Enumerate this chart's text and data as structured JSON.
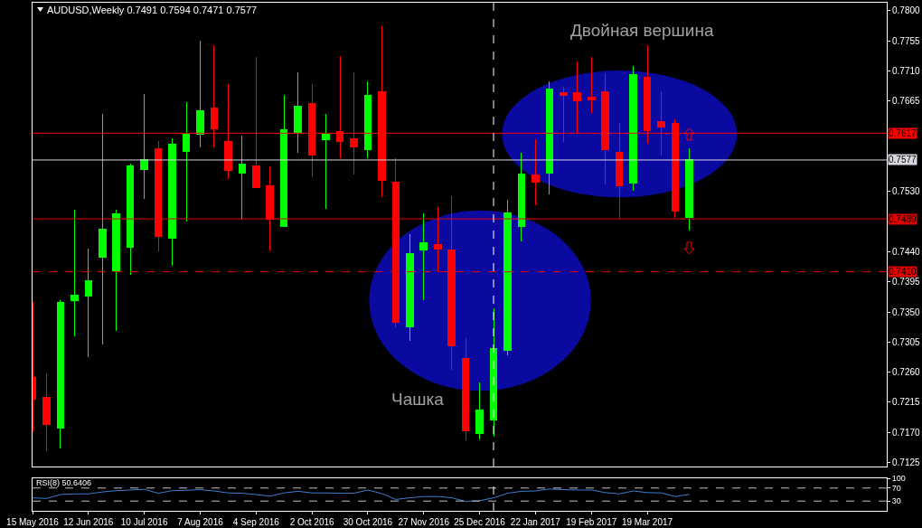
{
  "chart_data": [
    {
      "type": "candlestick",
      "title": "AUDUSD,Weekly 0.7491 0.7594 0.7471 0.7577",
      "x": [
        "2016-05-15",
        "2016-05-22",
        "2016-05-29",
        "2016-06-05",
        "2016-06-12",
        "2016-06-19",
        "2016-06-26",
        "2016-07-03",
        "2016-07-10",
        "2016-07-17",
        "2016-07-24",
        "2016-07-31",
        "2016-08-07",
        "2016-08-14",
        "2016-08-21",
        "2016-08-28",
        "2016-09-04",
        "2016-09-11",
        "2016-09-18",
        "2016-09-25",
        "2016-10-02",
        "2016-10-09",
        "2016-10-16",
        "2016-10-23",
        "2016-10-30",
        "2016-11-06",
        "2016-11-13",
        "2016-11-20",
        "2016-11-27",
        "2016-12-04",
        "2016-12-11",
        "2016-12-18",
        "2016-12-25",
        "2017-01-01",
        "2017-01-08",
        "2017-01-15",
        "2017-01-22",
        "2017-01-29",
        "2017-02-05",
        "2017-02-12",
        "2017-02-19",
        "2017-02-26",
        "2017-03-05",
        "2017-03-12",
        "2017-03-19",
        "2017-03-26",
        "2017-04-02",
        "2017-04-09"
      ],
      "ohlc": [
        [
          0.7252,
          0.7365,
          0.7171,
          0.722
        ],
        [
          0.7222,
          0.7258,
          0.7142,
          0.7182
        ],
        [
          0.7177,
          0.7367,
          0.7146,
          0.7364
        ],
        [
          0.7367,
          0.7503,
          0.7313,
          0.7375
        ],
        [
          0.7374,
          0.7445,
          0.7283,
          0.7396
        ],
        [
          0.7432,
          0.7646,
          0.7302,
          0.7473
        ],
        [
          0.7412,
          0.7502,
          0.7322,
          0.7497
        ],
        [
          0.7447,
          0.7572,
          0.7406,
          0.7568
        ],
        [
          0.7563,
          0.7675,
          0.7519,
          0.7577
        ],
        [
          0.7594,
          0.7605,
          0.744,
          0.7463
        ],
        [
          0.746,
          0.7609,
          0.7419,
          0.7601
        ],
        [
          0.759,
          0.7663,
          0.7485,
          0.7616
        ],
        [
          0.7615,
          0.7755,
          0.7596,
          0.765
        ],
        [
          0.7655,
          0.7749,
          0.7596,
          0.7624
        ],
        [
          0.7604,
          0.7691,
          0.7548,
          0.7561
        ],
        [
          0.7557,
          0.7614,
          0.7488,
          0.7571
        ],
        [
          0.7568,
          0.7731,
          0.7535,
          0.7536
        ],
        [
          0.7539,
          0.7567,
          0.744,
          0.7489
        ],
        [
          0.7478,
          0.7674,
          0.7477,
          0.7622
        ],
        [
          0.7618,
          0.7708,
          0.7588,
          0.7658
        ],
        [
          0.7661,
          0.769,
          0.7551,
          0.7584
        ],
        [
          0.7607,
          0.7646,
          0.7504,
          0.7616
        ],
        [
          0.762,
          0.7732,
          0.7579,
          0.7604
        ],
        [
          0.7609,
          0.7708,
          0.7555,
          0.7596
        ],
        [
          0.7592,
          0.7695,
          0.758,
          0.7673
        ],
        [
          0.7679,
          0.7777,
          0.7522,
          0.7547
        ],
        [
          0.7544,
          0.758,
          0.7327,
          0.7334
        ],
        [
          0.7328,
          0.7466,
          0.7307,
          0.7437
        ],
        [
          0.7442,
          0.7497,
          0.7367,
          0.7453
        ],
        [
          0.745,
          0.7507,
          0.741,
          0.7444
        ],
        [
          0.7442,
          0.7523,
          0.7264,
          0.7299
        ],
        [
          0.7281,
          0.7311,
          0.7158,
          0.7172
        ],
        [
          0.7168,
          0.7245,
          0.716,
          0.7204
        ],
        [
          0.7188,
          0.7355,
          0.7163,
          0.7295
        ],
        [
          0.7293,
          0.7518,
          0.7285,
          0.7498
        ],
        [
          0.7478,
          0.7588,
          0.7456,
          0.7556
        ],
        [
          0.7555,
          0.7608,
          0.751,
          0.7544
        ],
        [
          0.7557,
          0.7695,
          0.7526,
          0.7683
        ],
        [
          0.7678,
          0.7687,
          0.7604,
          0.7674
        ],
        [
          0.7678,
          0.7724,
          0.7618,
          0.7666
        ],
        [
          0.7671,
          0.7731,
          0.7647,
          0.7667
        ],
        [
          0.7679,
          0.7707,
          0.754,
          0.7593
        ],
        [
          0.7588,
          0.7632,
          0.7489,
          0.7539
        ],
        [
          0.7543,
          0.7718,
          0.7531,
          0.7704
        ],
        [
          0.77,
          0.7749,
          0.7601,
          0.7621
        ],
        [
          0.7635,
          0.7679,
          0.7584,
          0.7626
        ],
        [
          0.7632,
          0.7638,
          0.7491,
          0.75
        ],
        [
          0.7491,
          0.7594,
          0.7471,
          0.7577
        ]
      ],
      "colors": [
        "#ff0000",
        "#ff0000",
        "#00ff00",
        "#00ff00",
        "#00ff00",
        "#00ff00",
        "#00ff00",
        "#00ff00",
        "#00ff00",
        "#ff0000",
        "#00ff00",
        "#00ff00",
        "#00ff00",
        "#ff0000",
        "#ff0000",
        "#00ff00",
        "#ff0000",
        "#ff0000",
        "#00ff00",
        "#00ff00",
        "#ff0000",
        "#00ff00",
        "#ff0000",
        "#ff0000",
        "#00ff00",
        "#ff0000",
        "#ff0000",
        "#00ff00",
        "#00ff00",
        "#ff0000",
        "#ff0000",
        "#ff0000",
        "#00ff00",
        "#00ff00",
        "#00ff00",
        "#00ff00",
        "#ff0000",
        "#00ff00",
        "#ff0000",
        "#ff0000",
        "#ff0000",
        "#ff0000",
        "#ff0000",
        "#00ff00",
        "#ff0000",
        "#ff0000",
        "#ff0000",
        "#00ff00"
      ],
      "xlim": [
        "2016-05-15",
        "2017-07-17"
      ],
      "ylim": [
        0.7119,
        0.7812
      ],
      "yticks": [
        {
          "value": 0.78,
          "label": "0.7800"
        },
        0.7755,
        {
          "value": 0.771,
          "label": "0.7710"
        },
        0.7665,
        {
          "value": 0.753,
          "label": "0.7530"
        },
        {
          "value": 0.744,
          "label": "0.7440"
        },
        0.7395,
        {
          "value": 0.735,
          "label": "0.7350"
        },
        0.7305,
        {
          "value": 0.726,
          "label": "0.7260"
        },
        0.7215,
        {
          "value": 0.717,
          "label": "0.7170"
        },
        0.7125
      ],
      "tick_labels": "y",
      "ref_lines": [
        {
          "axis": "y",
          "value": 0.7617,
          "label": "0.7617",
          "color": "#ff0000"
        },
        {
          "axis": "y",
          "value": 0.7577,
          "label": "0.7577",
          "color": "#d8d8e0"
        },
        {
          "axis": "y",
          "value": 0.7489,
          "label": "0.7489",
          "color": "#e00000"
        },
        {
          "axis": "y",
          "value": 0.741,
          "label": "0.7410",
          "color": "#e00000",
          "line_style": "dashed"
        },
        {
          "axis": "x",
          "value": "2017-01-01",
          "color": "#ffffff",
          "line_style": "dashed"
        }
      ],
      "annotations": [
        "Двойная вершина",
        "Чашка"
      ]
    },
    {
      "type": "line",
      "title": "RSI(8) 50.6406",
      "x": [
        "2016-05-15",
        "2016-05-22",
        "2016-05-29",
        "2016-06-05",
        "2016-06-12",
        "2016-06-19",
        "2016-06-26",
        "2016-07-03",
        "2016-07-10",
        "2016-07-17",
        "2016-07-24",
        "2016-07-31",
        "2016-08-07",
        "2016-08-14",
        "2016-08-21",
        "2016-08-28",
        "2016-09-04",
        "2016-09-11",
        "2016-09-18",
        "2016-09-25",
        "2016-10-02",
        "2016-10-09",
        "2016-10-16",
        "2016-10-23",
        "2016-10-30",
        "2016-11-06",
        "2016-11-13",
        "2016-11-20",
        "2016-11-27",
        "2016-12-04",
        "2016-12-11",
        "2016-12-18",
        "2016-12-25",
        "2017-01-01",
        "2017-01-08",
        "2017-01-15",
        "2017-01-22",
        "2017-01-29",
        "2017-02-05",
        "2017-02-12",
        "2017-02-19",
        "2017-02-26",
        "2017-03-05",
        "2017-03-12",
        "2017-03-19",
        "2017-03-26",
        "2017-04-02",
        "2017-04-09"
      ],
      "values": [
        40,
        38,
        50,
        52,
        52,
        58,
        62,
        64,
        66,
        54,
        62,
        63,
        65,
        61,
        55,
        54,
        50,
        45,
        55,
        60,
        55,
        55,
        54,
        54,
        64,
        53,
        35,
        40,
        44,
        44,
        40,
        29,
        31,
        40,
        54,
        60,
        61,
        67,
        65,
        64,
        64,
        56,
        52,
        61,
        56,
        55,
        44,
        50.6406
      ],
      "color": "#3c7fd0",
      "xlim": [
        "2016-05-15",
        "2017-07-17"
      ],
      "xticks": [
        {
          "value": "2016-05-15",
          "label": "15 May 2016"
        },
        {
          "value": "2016-06-12",
          "label": "12 Jun 2016"
        },
        {
          "value": "2016-07-10",
          "label": "10 Jul 2016"
        },
        {
          "value": "2016-08-07",
          "label": "7 Aug 2016"
        },
        {
          "value": "2016-09-04",
          "label": "4 Sep 2016"
        },
        {
          "value": "2016-10-02",
          "label": "2 Oct 2016"
        },
        {
          "value": "2016-10-30",
          "label": "30 Oct 2016"
        },
        {
          "value": "2016-11-27",
          "label": "27 Nov 2016"
        },
        {
          "value": "2016-12-25",
          "label": "25 Dec 2016"
        },
        {
          "value": "2017-01-22",
          "label": "22 Jan 2017"
        },
        {
          "value": "2017-02-19",
          "label": "19 Feb 2017"
        },
        {
          "value": "2017-03-19",
          "label": "19 Mar 2017"
        }
      ],
      "ylim": [
        0,
        100
      ],
      "yticks": [
        100,
        70,
        30
      ],
      "ref_lines": [
        {
          "axis": "y",
          "value": 70,
          "color": "#c0c0c0",
          "line_style": "dashed"
        },
        {
          "axis": "y",
          "value": 30,
          "color": "#c0c0c0",
          "line_style": "dashed"
        },
        {
          "axis": "x",
          "value": "2017-01-01",
          "color": "#ffffff",
          "line_style": "dashed"
        }
      ]
    }
  ]
}
